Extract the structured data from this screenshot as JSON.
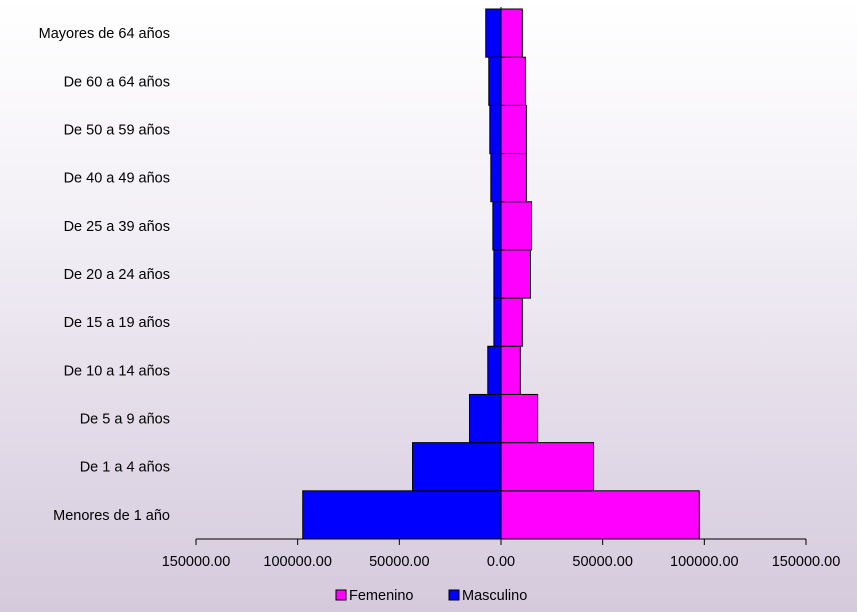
{
  "chart_data": {
    "type": "bar",
    "orientation": "horizontal",
    "layout": "population-pyramid",
    "categories": [
      "Menores de 1 año",
      "De 1 a 4 años",
      "De 5 a 9 años",
      "De 10 a 14 años",
      "De 15 a 19 años",
      "De 20 a 24 años",
      "De 25 a 39 años",
      "De 40 a 49 años",
      "De 50 a 59 años",
      "De 60 a 64 años",
      "Mayores de 64 años"
    ],
    "series": [
      {
        "name": "Femenino",
        "color": "#ff00ff",
        "side": "right",
        "values": [
          97500,
          45500,
          18000,
          9500,
          10500,
          14500,
          15000,
          12500,
          12500,
          12000,
          10500
        ]
      },
      {
        "name": "Masculino",
        "color": "#0000ff",
        "side": "left",
        "values": [
          97500,
          43500,
          15500,
          6500,
          3500,
          3500,
          4000,
          5000,
          5500,
          6000,
          7500
        ]
      }
    ],
    "xlim": [
      -150000,
      150000
    ],
    "x_ticks": [
      -150000,
      -100000,
      -50000,
      0,
      50000,
      100000,
      150000
    ],
    "x_tick_labels": [
      "150000.00",
      "100000.00",
      "50000.00",
      "0.00",
      "50000.00",
      "100000.00",
      "150000.00"
    ],
    "title": "",
    "xlabel": "",
    "ylabel": "",
    "grid": false,
    "legend": {
      "position": "bottom",
      "entries": [
        "Femenino",
        "Masculino"
      ]
    }
  }
}
